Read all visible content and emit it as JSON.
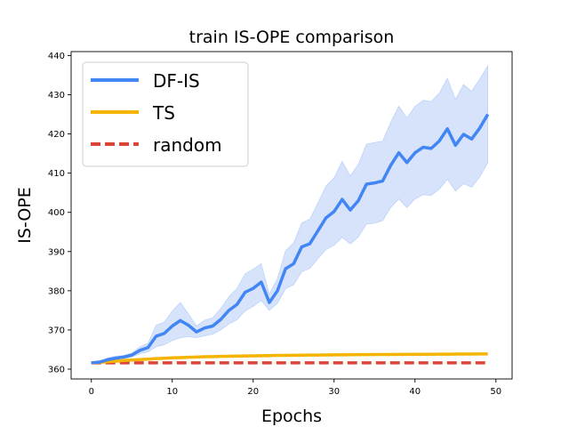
{
  "chart_data": {
    "type": "line",
    "title": "train IS-OPE comparison",
    "xlabel": "Epochs",
    "ylabel": "IS-OPE",
    "xlim": [
      -2.5,
      52
    ],
    "ylim": [
      357.5,
      441
    ],
    "xticks": [
      0,
      10,
      20,
      30,
      40,
      50
    ],
    "yticks": [
      360,
      370,
      380,
      390,
      400,
      410,
      420,
      430,
      440
    ],
    "grid": false,
    "legend_position": "top-left",
    "x": [
      0,
      1,
      2,
      3,
      4,
      5,
      6,
      7,
      8,
      9,
      10,
      11,
      12,
      13,
      14,
      15,
      16,
      17,
      18,
      19,
      20,
      21,
      22,
      23,
      24,
      25,
      26,
      27,
      28,
      29,
      30,
      31,
      32,
      33,
      34,
      35,
      36,
      37,
      38,
      39,
      40,
      41,
      42,
      43,
      44,
      45,
      46,
      47,
      48,
      49
    ],
    "series": [
      {
        "name": "DF-IS",
        "color": "#4285F4",
        "band_color": "#C8D9FA",
        "values": [
          361.6,
          361.8,
          362.4,
          362.8,
          363.1,
          363.6,
          364.8,
          365.5,
          368.4,
          369.1,
          371.0,
          372.4,
          371.2,
          369.5,
          370.5,
          371.0,
          372.7,
          375.0,
          376.5,
          379.6,
          380.6,
          382.2,
          377.0,
          380.0,
          385.6,
          386.9,
          391.2,
          392.0,
          395.3,
          398.6,
          400.2,
          403.3,
          400.6,
          403.0,
          407.2,
          407.5,
          408.0,
          412.0,
          415.2,
          412.7,
          415.2,
          416.6,
          416.3,
          418.2,
          421.3,
          417.1,
          419.9,
          418.7,
          421.5,
          425.0
        ],
        "lower": [
          361.5,
          361.6,
          361.9,
          362.3,
          362.7,
          363.1,
          363.9,
          364.4,
          365.7,
          366.2,
          367.3,
          368.0,
          368.3,
          368.0,
          368.5,
          368.9,
          370.0,
          371.5,
          372.6,
          374.8,
          376.0,
          377.5,
          375.0,
          376.8,
          380.5,
          381.5,
          384.8,
          385.7,
          388.2,
          390.5,
          391.6,
          393.6,
          391.9,
          393.7,
          397.0,
          397.2,
          397.9,
          401.2,
          403.4,
          401.2,
          403.4,
          404.5,
          404.3,
          405.9,
          408.4,
          405.4,
          407.3,
          406.4,
          409.0,
          412.7
        ],
        "upper": [
          361.7,
          361.9,
          362.9,
          363.3,
          363.5,
          364.1,
          365.7,
          366.6,
          371.2,
          372.0,
          374.8,
          377.0,
          374.1,
          371.0,
          372.5,
          373.1,
          375.5,
          378.5,
          380.6,
          384.3,
          385.5,
          386.9,
          379.1,
          383.2,
          390.2,
          392.2,
          397.3,
          398.3,
          402.4,
          406.7,
          408.8,
          413.0,
          409.3,
          412.3,
          417.4,
          417.8,
          418.2,
          423.0,
          427.1,
          424.1,
          427.0,
          428.6,
          428.3,
          430.4,
          434.2,
          428.8,
          432.6,
          430.9,
          434.0,
          437.4
        ]
      },
      {
        "name": "TS",
        "color": "#F4B400",
        "values": [
          361.6,
          361.75,
          361.9,
          362.05,
          362.2,
          362.32,
          362.44,
          362.56,
          362.68,
          362.78,
          362.88,
          362.96,
          363.04,
          363.1,
          363.16,
          363.21,
          363.26,
          363.3,
          363.34,
          363.38,
          363.41,
          363.44,
          363.47,
          363.5,
          363.52,
          363.55,
          363.57,
          363.59,
          363.61,
          363.63,
          363.65,
          363.66,
          363.68,
          363.7,
          363.71,
          363.73,
          363.74,
          363.75,
          363.76,
          363.78,
          363.79,
          363.8,
          363.81,
          363.82,
          363.83,
          363.84,
          363.85,
          363.86,
          363.87,
          363.88
        ]
      },
      {
        "name": "random",
        "color": "#DB4437",
        "dashed": true,
        "values": [
          361.6,
          361.6,
          361.6,
          361.6,
          361.6,
          361.6,
          361.6,
          361.6,
          361.6,
          361.6,
          361.6,
          361.6,
          361.6,
          361.6,
          361.6,
          361.6,
          361.6,
          361.6,
          361.6,
          361.6,
          361.6,
          361.6,
          361.6,
          361.6,
          361.6,
          361.6,
          361.6,
          361.6,
          361.6,
          361.6,
          361.6,
          361.6,
          361.6,
          361.6,
          361.6,
          361.6,
          361.6,
          361.6,
          361.6,
          361.6,
          361.6,
          361.6,
          361.6,
          361.6,
          361.6,
          361.6,
          361.6,
          361.6,
          361.6,
          361.6
        ]
      }
    ]
  }
}
